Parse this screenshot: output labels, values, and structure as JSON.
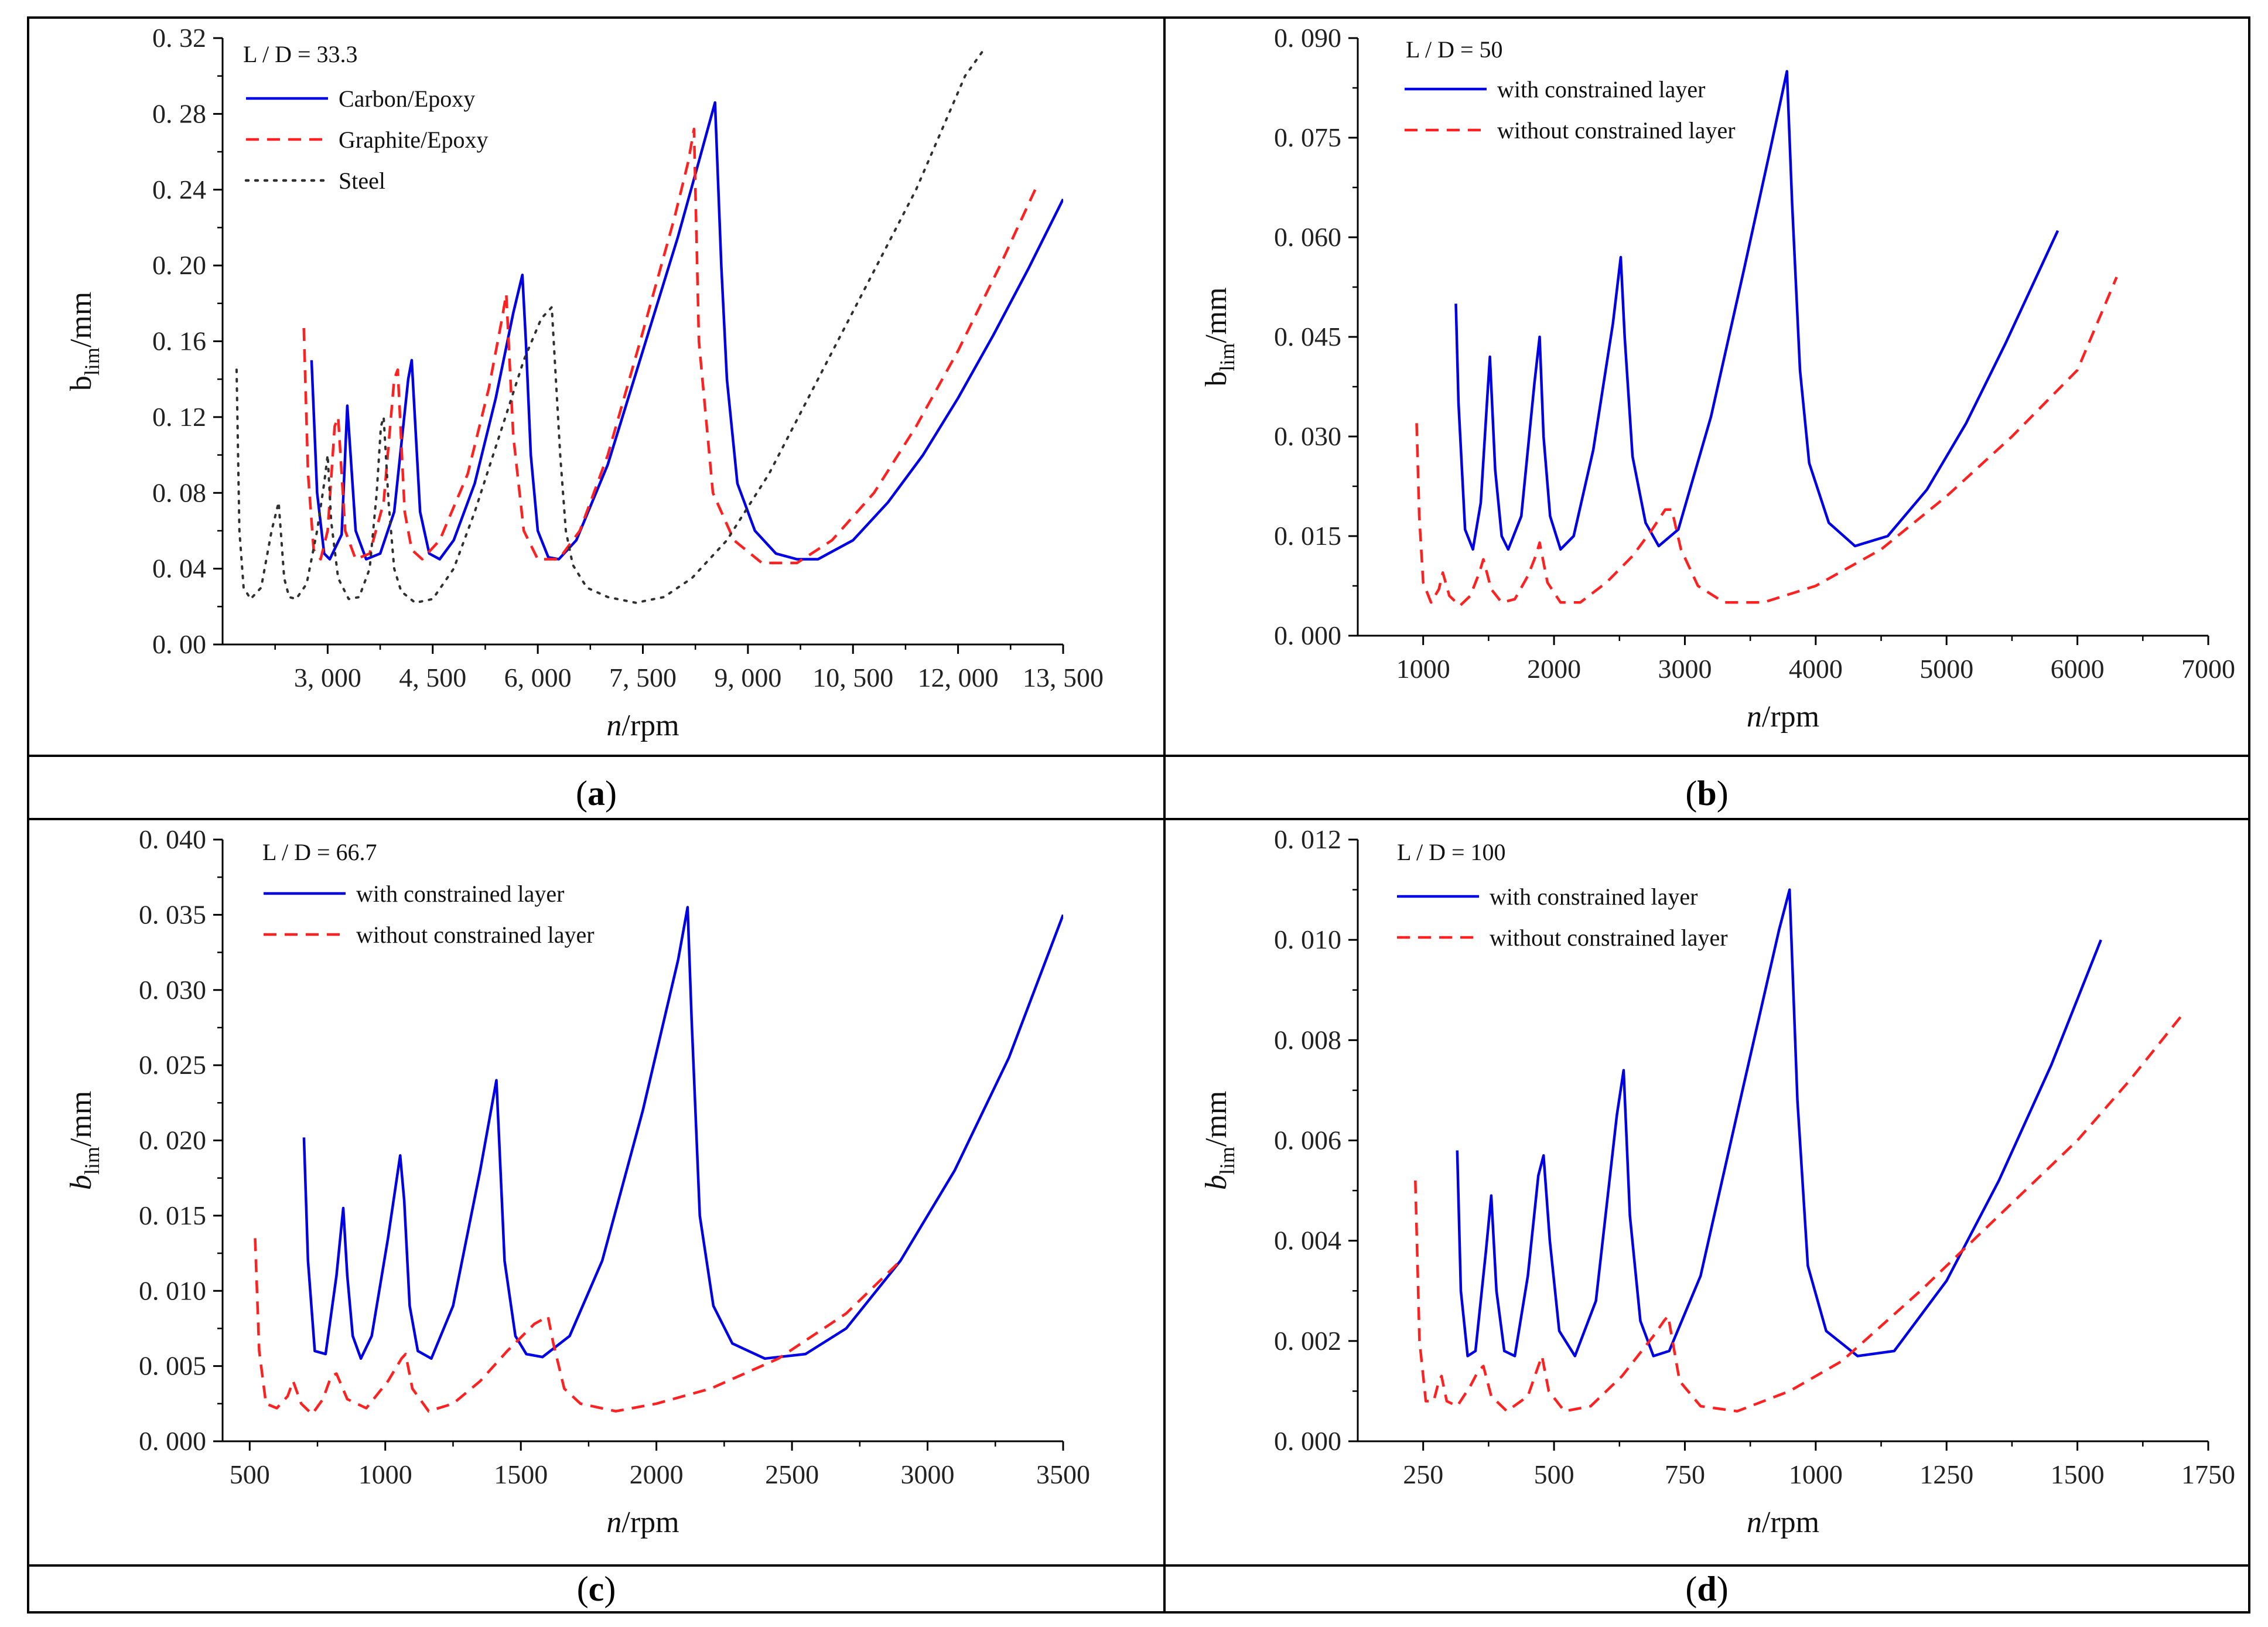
{
  "chart_data": [
    {
      "type": "line",
      "panel_label": "a",
      "annotation": "L / D = 33.3",
      "xlabel": "n/rpm",
      "ylabel": "b_lim/mm",
      "xlim": [
        1500,
        13500
      ],
      "ylim": [
        0,
        0.32
      ],
      "xticks": [
        3000,
        4500,
        6000,
        7500,
        9000,
        10500,
        12000,
        13500
      ],
      "xtick_labels": [
        "3, 000",
        "4, 500",
        "6, 000",
        "7, 500",
        "9, 000",
        "10, 500",
        "12, 000",
        "13, 500"
      ],
      "yticks": [
        0,
        0.04,
        0.08,
        0.12,
        0.16,
        0.2,
        0.24,
        0.28,
        0.32
      ],
      "ytick_labels": [
        "0. 00",
        "0. 04",
        "0. 08",
        "0. 12",
        "0. 16",
        "0. 20",
        "0. 24",
        "0. 28",
        "0. 32"
      ],
      "legend_position": "top-left",
      "series": [
        {
          "name": "Carbon/Epoxy",
          "style": "solid",
          "color": "#0000e6",
          "x": [
            2770,
            2850,
            2950,
            3030,
            3200,
            3280,
            3400,
            3550,
            3750,
            3950,
            4150,
            4200,
            4320,
            4450,
            4600,
            4800,
            5100,
            5400,
            5650,
            5780,
            5830,
            5900,
            6000,
            6150,
            6300,
            6550,
            7000,
            7500,
            8000,
            8300,
            8530,
            8620,
            8700,
            8850,
            9100,
            9400,
            9700,
            10000,
            10500,
            11000,
            11500,
            12000,
            12500,
            13000,
            13500
          ],
          "y": [
            0.15,
            0.08,
            0.048,
            0.045,
            0.058,
            0.126,
            0.06,
            0.045,
            0.048,
            0.07,
            0.14,
            0.15,
            0.07,
            0.048,
            0.045,
            0.055,
            0.085,
            0.13,
            0.175,
            0.195,
            0.16,
            0.1,
            0.06,
            0.046,
            0.045,
            0.055,
            0.095,
            0.155,
            0.215,
            0.255,
            0.286,
            0.2,
            0.14,
            0.085,
            0.06,
            0.048,
            0.045,
            0.045,
            0.055,
            0.075,
            0.1,
            0.13,
            0.163,
            0.198,
            0.235
          ]
        },
        {
          "name": "Graphite/Epoxy",
          "style": "dashed",
          "color": "#ff2020",
          "x": [
            2660,
            2720,
            2800,
            2900,
            3000,
            3100,
            3150,
            3250,
            3400,
            3600,
            3800,
            3950,
            4000,
            4100,
            4200,
            4350,
            4600,
            5000,
            5300,
            5480,
            5550,
            5650,
            5800,
            6000,
            6300,
            6600,
            7000,
            7500,
            7950,
            8150,
            8230,
            8300,
            8500,
            8800,
            9200,
            9700,
            10200,
            10800,
            11400,
            12000,
            12600,
            13100
          ],
          "y": [
            0.167,
            0.09,
            0.05,
            0.045,
            0.06,
            0.115,
            0.12,
            0.06,
            0.045,
            0.048,
            0.075,
            0.14,
            0.145,
            0.07,
            0.05,
            0.045,
            0.055,
            0.09,
            0.135,
            0.17,
            0.185,
            0.11,
            0.06,
            0.045,
            0.045,
            0.06,
            0.1,
            0.165,
            0.225,
            0.255,
            0.272,
            0.16,
            0.08,
            0.055,
            0.043,
            0.043,
            0.055,
            0.08,
            0.115,
            0.155,
            0.2,
            0.24
          ]
        },
        {
          "name": "Steel",
          "style": "dotted",
          "color": "#303030",
          "x": [
            1700,
            1740,
            1800,
            1900,
            2050,
            2200,
            2300,
            2330,
            2380,
            2450,
            2550,
            2700,
            2850,
            2950,
            3000,
            3050,
            3150,
            3300,
            3450,
            3600,
            3700,
            3760,
            3800,
            3870,
            3950,
            4050,
            4250,
            4500,
            4800,
            5100,
            5450,
            5800,
            6050,
            6200,
            6320,
            6400,
            6500,
            6700,
            7000,
            7400,
            7800,
            8200,
            8700,
            9300,
            10000,
            10700,
            11400,
            12100,
            12350
          ],
          "y": [
            0.145,
            0.06,
            0.03,
            0.024,
            0.03,
            0.06,
            0.075,
            0.06,
            0.035,
            0.025,
            0.024,
            0.032,
            0.06,
            0.085,
            0.1,
            0.065,
            0.035,
            0.024,
            0.025,
            0.04,
            0.08,
            0.115,
            0.12,
            0.075,
            0.04,
            0.028,
            0.022,
            0.024,
            0.04,
            0.07,
            0.11,
            0.15,
            0.172,
            0.178,
            0.1,
            0.06,
            0.042,
            0.03,
            0.025,
            0.022,
            0.025,
            0.035,
            0.055,
            0.09,
            0.14,
            0.19,
            0.24,
            0.3,
            0.313
          ]
        }
      ]
    },
    {
      "type": "line",
      "panel_label": "b",
      "annotation": "L / D = 50",
      "xlabel": "n/rpm",
      "ylabel": "b_lim/mm",
      "xlim": [
        500,
        7000
      ],
      "ylim": [
        0,
        0.09
      ],
      "xticks": [
        1000,
        2000,
        3000,
        4000,
        5000,
        6000,
        7000
      ],
      "xtick_labels": [
        "1000",
        "2000",
        "3000",
        "4000",
        "5000",
        "6000",
        "7000"
      ],
      "yticks": [
        0,
        0.015,
        0.03,
        0.045,
        0.06,
        0.075,
        0.09
      ],
      "ytick_labels": [
        "0. 000",
        "0. 015",
        "0. 030",
        "0. 045",
        "0. 060",
        "0. 075",
        "0. 090"
      ],
      "legend_position": "top-left",
      "series": [
        {
          "name": "with constrained layer",
          "style": "solid",
          "color": "#0000e6",
          "x": [
            1250,
            1270,
            1320,
            1380,
            1440,
            1490,
            1510,
            1550,
            1600,
            1650,
            1750,
            1850,
            1890,
            1920,
            1970,
            2050,
            2150,
            2300,
            2450,
            2510,
            2540,
            2600,
            2700,
            2800,
            2950,
            3200,
            3450,
            3650,
            3780,
            3820,
            3880,
            3950,
            4100,
            4300,
            4550,
            4850,
            5150,
            5450,
            5850
          ],
          "y": [
            0.05,
            0.035,
            0.016,
            0.013,
            0.02,
            0.036,
            0.042,
            0.025,
            0.015,
            0.013,
            0.018,
            0.038,
            0.045,
            0.03,
            0.018,
            0.013,
            0.015,
            0.028,
            0.047,
            0.057,
            0.045,
            0.027,
            0.017,
            0.0135,
            0.016,
            0.033,
            0.055,
            0.073,
            0.085,
            0.065,
            0.04,
            0.026,
            0.017,
            0.0135,
            0.015,
            0.022,
            0.032,
            0.044,
            0.061
          ]
        },
        {
          "name": "without constrained layer",
          "style": "dashed",
          "color": "#ff2020",
          "x": [
            950,
            970,
            1000,
            1060,
            1120,
            1150,
            1200,
            1280,
            1360,
            1430,
            1460,
            1520,
            1600,
            1700,
            1800,
            1860,
            1890,
            1950,
            2050,
            2200,
            2400,
            2600,
            2750,
            2850,
            2900,
            2970,
            3100,
            3300,
            3600,
            4000,
            4500,
            5000,
            5500,
            6000,
            6300
          ],
          "y": [
            0.032,
            0.018,
            0.008,
            0.005,
            0.007,
            0.0095,
            0.006,
            0.0045,
            0.006,
            0.0095,
            0.0115,
            0.007,
            0.005,
            0.0055,
            0.009,
            0.012,
            0.014,
            0.008,
            0.005,
            0.005,
            0.008,
            0.012,
            0.016,
            0.019,
            0.019,
            0.013,
            0.0075,
            0.005,
            0.005,
            0.0075,
            0.013,
            0.021,
            0.03,
            0.04,
            0.054
          ]
        }
      ]
    },
    {
      "type": "line",
      "panel_label": "c",
      "annotation": "L / D = 66.7",
      "xlabel": "n/rpm",
      "ylabel": "b_lim/mm",
      "xlim": [
        400,
        3500
      ],
      "ylim": [
        0,
        0.04
      ],
      "xticks": [
        500,
        1000,
        1500,
        2000,
        2500,
        3000,
        3500
      ],
      "xtick_labels": [
        "500",
        "1000",
        "1500",
        "2000",
        "2500",
        "3000",
        "3500"
      ],
      "yticks": [
        0,
        0.005,
        0.01,
        0.015,
        0.02,
        0.025,
        0.03,
        0.035,
        0.04
      ],
      "ytick_labels": [
        "0. 000",
        "0. 005",
        "0. 010",
        "0. 015",
        "0. 020",
        "0. 025",
        "0. 030",
        "0. 035",
        "0. 040"
      ],
      "legend_position": "top-left",
      "series": [
        {
          "name": "with constrained layer",
          "style": "solid",
          "color": "#0000e6",
          "x": [
            700,
            715,
            740,
            780,
            820,
            845,
            860,
            880,
            910,
            950,
            1010,
            1055,
            1070,
            1090,
            1120,
            1170,
            1250,
            1350,
            1410,
            1420,
            1440,
            1480,
            1520,
            1580,
            1680,
            1800,
            1950,
            2080,
            2115,
            2130,
            2160,
            2210,
            2280,
            2400,
            2550,
            2700,
            2900,
            3100,
            3300,
            3500
          ],
          "y": [
            0.0202,
            0.012,
            0.006,
            0.0058,
            0.011,
            0.0155,
            0.011,
            0.007,
            0.0055,
            0.007,
            0.0135,
            0.019,
            0.016,
            0.009,
            0.006,
            0.0055,
            0.009,
            0.018,
            0.024,
            0.02,
            0.012,
            0.007,
            0.0058,
            0.0056,
            0.007,
            0.012,
            0.022,
            0.032,
            0.0355,
            0.028,
            0.015,
            0.009,
            0.0065,
            0.0055,
            0.0058,
            0.0075,
            0.012,
            0.018,
            0.0255,
            0.035
          ]
        },
        {
          "name": "without constrained layer",
          "style": "dashed",
          "color": "#ff2020",
          "x": [
            520,
            535,
            560,
            600,
            640,
            660,
            690,
            730,
            770,
            800,
            820,
            860,
            930,
            1010,
            1060,
            1075,
            1100,
            1160,
            1250,
            1350,
            1450,
            1550,
            1600,
            1620,
            1660,
            1720,
            1850,
            2000,
            2200,
            2450,
            2700,
            2900
          ],
          "y": [
            0.0135,
            0.006,
            0.0025,
            0.0022,
            0.003,
            0.004,
            0.0025,
            0.0018,
            0.0028,
            0.0043,
            0.0045,
            0.0028,
            0.0022,
            0.004,
            0.0055,
            0.0058,
            0.0035,
            0.002,
            0.0025,
            0.004,
            0.006,
            0.0078,
            0.0083,
            0.0065,
            0.0035,
            0.0025,
            0.002,
            0.0025,
            0.0035,
            0.0055,
            0.0085,
            0.012
          ]
        }
      ]
    },
    {
      "type": "line",
      "panel_label": "d",
      "annotation": "L / D = 100",
      "xlabel": "n/rpm",
      "ylabel": "b_lim/mm",
      "xlim": [
        125,
        1750
      ],
      "ylim": [
        0,
        0.012
      ],
      "xticks": [
        250,
        500,
        750,
        1000,
        1250,
        1500,
        1750
      ],
      "xtick_labels": [
        "250",
        "500",
        "750",
        "1000",
        "1250",
        "1500",
        "1750"
      ],
      "yticks": [
        0,
        0.002,
        0.004,
        0.006,
        0.008,
        0.01,
        0.012
      ],
      "ytick_labels": [
        "0. 000",
        "0. 002",
        "0. 004",
        "0. 006",
        "0. 008",
        "0. 010",
        "0. 012"
      ],
      "legend_position": "top-left",
      "series": [
        {
          "name": "with constrained layer",
          "style": "solid",
          "color": "#0000e6",
          "x": [
            315,
            322,
            335,
            350,
            370,
            380,
            390,
            405,
            425,
            450,
            470,
            480,
            492,
            510,
            540,
            580,
            620,
            633,
            645,
            665,
            690,
            720,
            780,
            860,
            930,
            950,
            965,
            985,
            1020,
            1080,
            1150,
            1250,
            1350,
            1450,
            1545
          ],
          "y": [
            0.0058,
            0.003,
            0.0017,
            0.0018,
            0.0038,
            0.0049,
            0.003,
            0.0018,
            0.0017,
            0.0033,
            0.0053,
            0.0057,
            0.004,
            0.0022,
            0.0017,
            0.0028,
            0.0065,
            0.0074,
            0.0045,
            0.0024,
            0.0017,
            0.0018,
            0.0033,
            0.007,
            0.0102,
            0.011,
            0.0068,
            0.0035,
            0.0022,
            0.0017,
            0.0018,
            0.0032,
            0.0052,
            0.0075,
            0.01
          ]
        },
        {
          "name": "without constrained layer",
          "style": "dashed",
          "color": "#ff2020",
          "x": [
            235,
            243,
            255,
            270,
            280,
            285,
            295,
            315,
            340,
            355,
            365,
            380,
            410,
            450,
            470,
            477,
            490,
            520,
            570,
            630,
            690,
            710,
            718,
            740,
            780,
            850,
            950,
            1050,
            1200,
            1350,
            1500,
            1600,
            1700
          ],
          "y": [
            0.0052,
            0.002,
            0.0008,
            0.0008,
            0.0012,
            0.0013,
            0.0008,
            0.0007,
            0.0011,
            0.0014,
            0.0015,
            0.0009,
            0.0006,
            0.0009,
            0.0015,
            0.0017,
            0.001,
            0.0006,
            0.0007,
            0.0013,
            0.0021,
            0.0024,
            0.0025,
            0.0012,
            0.0007,
            0.0006,
            0.001,
            0.0016,
            0.003,
            0.0045,
            0.006,
            0.0072,
            0.0085
          ]
        }
      ]
    }
  ]
}
